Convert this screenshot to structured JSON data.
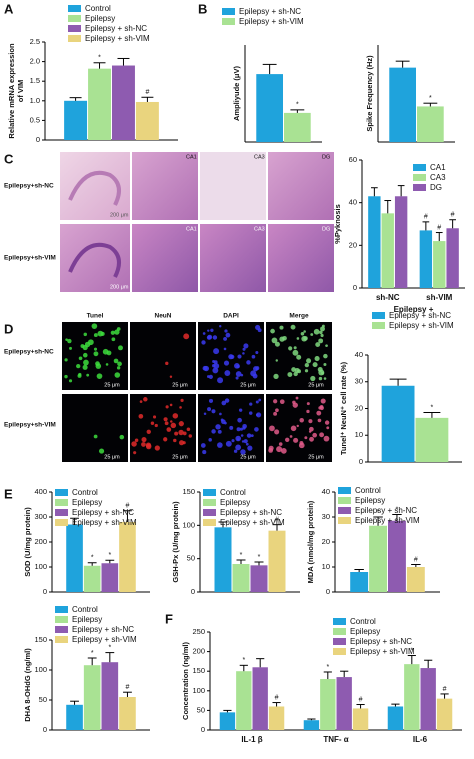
{
  "panels": {
    "letters": [
      "A",
      "B",
      "C",
      "D",
      "E",
      "F"
    ],
    "he_rows": [
      "Epilepsy+sh-NC",
      "Epilepsy+sh-VIM"
    ],
    "he_labels": [
      "CA1",
      "CA3",
      "DG"
    ],
    "he_scale": "200 μm",
    "if_columns": [
      "Tunel",
      "NeuN",
      "DAPI",
      "Merge"
    ],
    "if_rows": [
      "Epilepsy+sh-NC",
      "Epilepsy+sh-VIM"
    ],
    "if_scale": "25 μm"
  },
  "chart_data": [
    {
      "type": "bar",
      "ylabel": [
        "Relative mRNA expression",
        "of VIM"
      ],
      "ylim": [
        0,
        2.5
      ],
      "yticks": [
        0,
        0.5,
        {
          "value": 1,
          "label": "1.0"
        },
        1.5,
        {
          "value": 2,
          "label": "2.0"
        },
        2.5
      ],
      "legend": true,
      "series": [
        {
          "name": "Control",
          "color": "#1fa3dc",
          "values": [
            1.0
          ],
          "errors": [
            0.08
          ],
          "annotations": [
            null
          ]
        },
        {
          "name": "Epilepsy",
          "color": "#a9e293",
          "values": [
            1.82
          ],
          "errors": [
            0.15
          ],
          "annotations": [
            "*"
          ]
        },
        {
          "name": "Epilepsy + sh-NC",
          "color": "#8e5bb0",
          "values": [
            1.9
          ],
          "errors": [
            0.18
          ],
          "annotations": [
            null
          ]
        },
        {
          "name": "Epilepsy + sh-VIM",
          "color": "#e9d47e",
          "values": [
            0.97
          ],
          "errors": [
            0.12
          ],
          "annotations": [
            "#"
          ]
        }
      ]
    },
    {
      "type": "bar",
      "ylabel": "Ampliyude (μV)",
      "ylim": [
        0,
        80
      ],
      "legend": true,
      "series": [
        {
          "name": "Epilepsy + sh-NC",
          "color": "#1fa3dc",
          "values": [
            56
          ],
          "errors": [
            8
          ],
          "annotations": [
            null
          ]
        },
        {
          "name": "Epilepsy + sh-VIM",
          "color": "#a9e293",
          "values": [
            24
          ],
          "errors": [
            2.5
          ],
          "annotations": [
            "*"
          ]
        }
      ]
    },
    {
      "type": "bar",
      "ylabel": "Spike Frequency (Hz)",
      "ylim": [
        0,
        6
      ],
      "legend": false,
      "series": [
        {
          "name": "Epilepsy + sh-NC",
          "color": "#1fa3dc",
          "values": [
            4.6
          ],
          "errors": [
            0.4
          ],
          "annotations": [
            null
          ]
        },
        {
          "name": "Epilepsy + sh-VIM",
          "color": "#a9e293",
          "values": [
            2.2
          ],
          "errors": [
            0.2
          ],
          "annotations": [
            "*"
          ]
        }
      ]
    },
    {
      "type": "bar",
      "ylabel": "%Pyknosis",
      "xlabel": "Epilepsy +",
      "categories": [
        "sh-NC",
        "sh-VIM"
      ],
      "ylim": [
        0,
        60
      ],
      "yticks": [
        0,
        20,
        40,
        60
      ],
      "legend": true,
      "series": [
        {
          "name": "CA1",
          "color": "#1fa3dc",
          "values": [
            43,
            27
          ],
          "errors": [
            4,
            4
          ],
          "annotations": [
            null,
            "#"
          ]
        },
        {
          "name": "CA3",
          "color": "#a9e293",
          "values": [
            35,
            22
          ],
          "errors": [
            6,
            4
          ],
          "annotations": [
            null,
            "#"
          ]
        },
        {
          "name": "DG",
          "color": "#8e5bb0",
          "values": [
            43,
            28
          ],
          "errors": [
            5,
            4
          ],
          "annotations": [
            null,
            "#"
          ]
        }
      ]
    },
    {
      "type": "bar",
      "ylabel": "Tunel⁺ NeuN⁺ cell rate (%)",
      "ylim": [
        0,
        40
      ],
      "yticks": [
        0,
        10,
        20,
        30,
        40
      ],
      "legend": true,
      "series": [
        {
          "name": "Epilepsy + sh-NC",
          "color": "#1fa3dc",
          "values": [
            28.5
          ],
          "errors": [
            2.5
          ],
          "annotations": [
            null
          ]
        },
        {
          "name": "Epilepsy + sh-VIM",
          "color": "#a9e293",
          "values": [
            16.5
          ],
          "errors": [
            2
          ],
          "annotations": [
            "*"
          ]
        }
      ]
    },
    {
      "type": "bar",
      "ylabel": "SOD (U/mg protein)",
      "ylim": [
        0,
        400
      ],
      "yticks": [
        0,
        100,
        200,
        300,
        400
      ],
      "legend": true,
      "series": [
        {
          "name": "Control",
          "color": "#1fa3dc",
          "values": [
            270
          ],
          "errors": [
            25
          ],
          "annotations": [
            null
          ]
        },
        {
          "name": "Epilepsy",
          "color": "#a9e293",
          "values": [
            105
          ],
          "errors": [
            12
          ],
          "annotations": [
            "*"
          ]
        },
        {
          "name": "Epilepsy + sh-NC",
          "color": "#8e5bb0",
          "values": [
            115
          ],
          "errors": [
            12
          ],
          "annotations": [
            "*"
          ]
        },
        {
          "name": "Epilepsy + sh-VIM",
          "color": "#e9d47e",
          "values": [
            280
          ],
          "errors": [
            45
          ],
          "annotations": [
            "#"
          ]
        }
      ]
    },
    {
      "type": "bar",
      "ylabel": "GSH-Px (U/mg protein)",
      "ylim": [
        0,
        150
      ],
      "yticks": [
        0,
        50,
        100,
        150
      ],
      "legend": true,
      "series": [
        {
          "name": "Control",
          "color": "#1fa3dc",
          "values": [
            97
          ],
          "errors": [
            8
          ],
          "annotations": [
            null
          ]
        },
        {
          "name": "Epilepsy",
          "color": "#a9e293",
          "values": [
            42
          ],
          "errors": [
            6
          ],
          "annotations": [
            "*"
          ]
        },
        {
          "name": "Epilepsy + sh-NC",
          "color": "#8e5bb0",
          "values": [
            40
          ],
          "errors": [
            5
          ],
          "annotations": [
            "*"
          ]
        },
        {
          "name": "Epilepsy + sh-VIM",
          "color": "#e9d47e",
          "values": [
            92
          ],
          "errors": [
            9
          ],
          "annotations": [
            "#"
          ]
        }
      ]
    },
    {
      "type": "bar",
      "ylabel": "MDA (nmol/mg protein)",
      "ylim": [
        0,
        40
      ],
      "yticks": [
        0,
        10,
        20,
        30,
        40
      ],
      "legend": true,
      "series": [
        {
          "name": "Control",
          "color": "#1fa3dc",
          "values": [
            8
          ],
          "errors": [
            1
          ],
          "annotations": [
            null
          ]
        },
        {
          "name": "Epilepsy",
          "color": "#a9e293",
          "values": [
            26.5
          ],
          "errors": [
            3.5
          ],
          "annotations": [
            "*"
          ]
        },
        {
          "name": "Epilepsy + sh-NC",
          "color": "#8e5bb0",
          "values": [
            28.5
          ],
          "errors": [
            2.5
          ],
          "annotations": [
            "*"
          ]
        },
        {
          "name": "Epilepsy + sh-VIM",
          "color": "#e9d47e",
          "values": [
            10
          ],
          "errors": [
            1
          ],
          "annotations": [
            "#"
          ]
        }
      ]
    },
    {
      "type": "bar",
      "ylabel": "DHA 8-OHdG (ng/ml)",
      "ylim": [
        0,
        150
      ],
      "yticks": [
        0,
        50,
        100,
        150
      ],
      "legend": true,
      "series": [
        {
          "name": "Control",
          "color": "#1fa3dc",
          "values": [
            42
          ],
          "errors": [
            6
          ],
          "annotations": [
            null
          ]
        },
        {
          "name": "Epilepsy",
          "color": "#a9e293",
          "values": [
            108
          ],
          "errors": [
            12
          ],
          "annotations": [
            "*"
          ]
        },
        {
          "name": "Epilepsy + sh-NC",
          "color": "#8e5bb0",
          "values": [
            113
          ],
          "errors": [
            16
          ],
          "annotations": [
            "*"
          ]
        },
        {
          "name": "Epilepsy + sh-VIM",
          "color": "#e9d47e",
          "values": [
            55
          ],
          "errors": [
            8
          ],
          "annotations": [
            "#"
          ]
        }
      ]
    },
    {
      "type": "bar",
      "ylabel": "Concentration (ng/ml)",
      "categories": [
        "IL-1 β",
        "TNF- α",
        "IL-6"
      ],
      "ylim": [
        0,
        250
      ],
      "yticks": [
        0,
        50,
        100,
        150,
        200,
        250
      ],
      "legend": true,
      "series": [
        {
          "name": "Control",
          "color": "#1fa3dc",
          "values": [
            45,
            25,
            60
          ],
          "errors": [
            5,
            3,
            6
          ],
          "annotations": [
            null,
            null,
            null
          ]
        },
        {
          "name": "Epilepsy",
          "color": "#a9e293",
          "values": [
            150,
            130,
            168
          ],
          "errors": [
            15,
            18,
            22
          ],
          "annotations": [
            "*",
            "*",
            "*"
          ]
        },
        {
          "name": "Epilepsy + sh-NC",
          "color": "#8e5bb0",
          "values": [
            160,
            135,
            158
          ],
          "errors": [
            22,
            15,
            20
          ],
          "annotations": [
            null,
            null,
            null
          ]
        },
        {
          "name": "Epilepsy + sh-VIM",
          "color": "#e9d47e",
          "values": [
            60,
            55,
            80
          ],
          "errors": [
            10,
            10,
            12
          ],
          "annotations": [
            "#",
            "#",
            "#"
          ]
        }
      ]
    }
  ]
}
